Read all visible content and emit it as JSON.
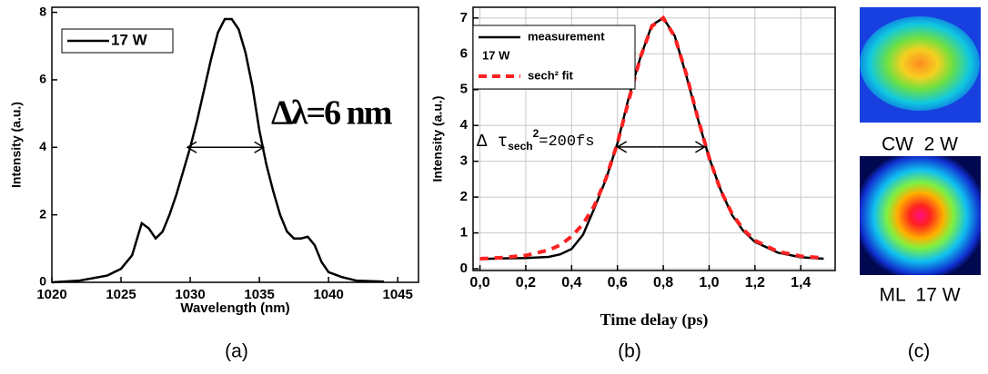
{
  "chart_data": [
    {
      "type": "line",
      "xlabel": "Wavelength (nm)",
      "ylabel": "Intensity (a.u.)",
      "x": [
        1020,
        1022,
        1024,
        1025,
        1025.8,
        1026.5,
        1027,
        1027.5,
        1028,
        1028.5,
        1029,
        1029.5,
        1030,
        1030.5,
        1031,
        1031.5,
        1032,
        1032.5,
        1033,
        1033.5,
        1034,
        1034.5,
        1035,
        1035.5,
        1036,
        1036.5,
        1037,
        1037.5,
        1038,
        1038.5,
        1039,
        1039.5,
        1040,
        1041,
        1042,
        1044
      ],
      "series": [
        {
          "name": "17 W",
          "color": "#000000",
          "values": [
            0,
            0.05,
            0.2,
            0.4,
            0.8,
            1.75,
            1.6,
            1.3,
            1.5,
            2.0,
            2.6,
            3.3,
            4.0,
            4.8,
            5.7,
            6.6,
            7.4,
            7.8,
            7.8,
            7.5,
            6.8,
            5.8,
            4.5,
            3.5,
            2.7,
            2.0,
            1.5,
            1.3,
            1.3,
            1.35,
            1.1,
            0.6,
            0.3,
            0.15,
            0.05,
            0.02
          ]
        }
      ],
      "xlim": [
        1020,
        1046.5
      ],
      "xticks": [
        1020,
        1025,
        1030,
        1035,
        1040,
        1045
      ],
      "ylim": [
        0,
        8.15
      ],
      "yticks": [
        0,
        2,
        4,
        6,
        8
      ],
      "grid": false,
      "annotation": "Δλ=6 nm",
      "arrow": {
        "x": [
          1029.8,
          1035.3
        ],
        "y": 4
      }
    },
    {
      "type": "line",
      "xlabel": "Time delay (ps)",
      "ylabel": "Intensity (a.u.)",
      "x": [
        0,
        0.1,
        0.2,
        0.3,
        0.35,
        0.4,
        0.45,
        0.5,
        0.55,
        0.6,
        0.65,
        0.7,
        0.75,
        0.8,
        0.85,
        0.9,
        0.95,
        1.0,
        1.05,
        1.1,
        1.15,
        1.2,
        1.3,
        1.4,
        1.5
      ],
      "series": [
        {
          "name": "measurement",
          "color": "#000000",
          "dash": false,
          "values": [
            0.27,
            0.29,
            0.3,
            0.33,
            0.4,
            0.55,
            0.95,
            1.7,
            2.5,
            3.5,
            4.8,
            5.9,
            6.8,
            7.0,
            6.5,
            5.4,
            4.2,
            3.1,
            2.2,
            1.5,
            1.05,
            0.75,
            0.45,
            0.32,
            0.28
          ]
        },
        {
          "name": "sech² fit",
          "color": "#ff2020",
          "dash": true,
          "values": [
            0.28,
            0.31,
            0.37,
            0.52,
            0.66,
            0.9,
            1.25,
            1.77,
            2.52,
            3.51,
            4.72,
            5.9,
            6.77,
            7.0,
            6.48,
            5.44,
            4.22,
            3.1,
            2.19,
            1.54,
            1.09,
            0.79,
            0.48,
            0.35,
            0.3
          ]
        }
      ],
      "legend_note": "17 W",
      "xlim": [
        -0.03,
        1.55
      ],
      "xticks": [
        {
          "value": 0,
          "label": "0,0"
        },
        {
          "value": 0.2,
          "label": "0,2"
        },
        {
          "value": 0.4,
          "label": "0,4"
        },
        {
          "value": 0.6,
          "label": "0,6"
        },
        {
          "value": 0.8,
          "label": "0,8"
        },
        {
          "value": 1.0,
          "label": "1,0"
        },
        {
          "value": 1.2,
          "label": "1,2"
        },
        {
          "value": 1.4,
          "label": "1,4"
        }
      ],
      "ylim": [
        -0.05,
        7.3
      ],
      "yticks": [
        0,
        1,
        2,
        3,
        4,
        5,
        6,
        7
      ],
      "grid": true,
      "annotation": {
        "main": "Δ τ",
        "sub": "sech",
        "sup": "2",
        "rest": "=200fs"
      },
      "arrow": {
        "x": [
          0.6,
          0.98
        ],
        "y": 3.4
      }
    }
  ],
  "images": [
    {
      "label": "CW  2 W"
    },
    {
      "label": "ML  17 W"
    }
  ],
  "captions": [
    "(a)",
    "(b)",
    "(c)"
  ]
}
